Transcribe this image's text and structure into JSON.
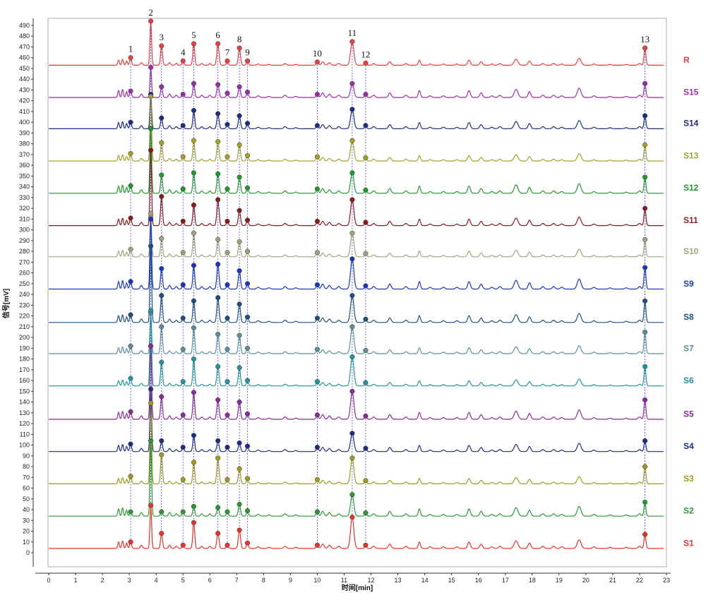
{
  "chart_data": {
    "type": "line",
    "xlabel": "时间[min]",
    "ylabel": "信号[mV]",
    "xlim": [
      0,
      23
    ],
    "ylim": [
      -5,
      495
    ],
    "x_ticks": [
      0,
      1,
      2,
      3,
      4,
      5,
      6,
      7,
      8,
      9,
      10,
      11,
      12,
      13,
      14,
      15,
      16,
      17,
      18,
      19,
      20,
      21,
      22,
      23
    ],
    "y_ticks": [
      0,
      10,
      20,
      30,
      40,
      50,
      60,
      70,
      80,
      90,
      100,
      110,
      120,
      130,
      140,
      150,
      160,
      170,
      180,
      190,
      200,
      210,
      220,
      230,
      240,
      250,
      260,
      270,
      280,
      290,
      300,
      310,
      320,
      330,
      340,
      350,
      360,
      370,
      380,
      390,
      400,
      410,
      420,
      430,
      440,
      450,
      460,
      470,
      480,
      490
    ],
    "peak_labels": [
      "1",
      "2",
      "3",
      "4",
      "5",
      "6",
      "7",
      "8",
      "9",
      "10",
      "11",
      "12",
      "13"
    ],
    "peak_times": [
      3.05,
      3.8,
      4.2,
      5.0,
      5.4,
      6.3,
      6.65,
      7.1,
      7.4,
      10.0,
      11.3,
      11.8,
      22.2
    ],
    "series": [
      {
        "name": "R",
        "color": "#e8413c",
        "baseline": 453,
        "peak_heights": [
          7,
          41,
          18,
          4,
          20,
          20,
          4,
          16,
          4,
          3,
          22,
          2,
          16
        ]
      },
      {
        "name": "S15",
        "color": "#9b2fa8",
        "baseline": 423,
        "peak_heights": [
          6,
          28,
          10,
          3,
          13,
          12,
          4,
          10,
          5,
          3,
          13,
          3,
          13
        ]
      },
      {
        "name": "S14",
        "color": "#1c2d86",
        "baseline": 394,
        "peak_heights": [
          6,
          32,
          10,
          3,
          17,
          14,
          4,
          12,
          5,
          3,
          18,
          3,
          12
        ]
      },
      {
        "name": "S13",
        "color": "#a5a126",
        "baseline": 364,
        "peak_heights": [
          7,
          60,
          17,
          4,
          19,
          18,
          4,
          15,
          5,
          4,
          19,
          3,
          15
        ]
      },
      {
        "name": "S12",
        "color": "#1f9a2c",
        "baseline": 334,
        "peak_heights": [
          7,
          60,
          17,
          4,
          19,
          18,
          4,
          15,
          5,
          4,
          19,
          3,
          15
        ]
      },
      {
        "name": "S11",
        "color": "#8c1a1a",
        "baseline": 304,
        "peak_heights": [
          7,
          70,
          27,
          4,
          19,
          24,
          4,
          14,
          5,
          4,
          24,
          3,
          16
        ]
      },
      {
        "name": "S10",
        "color": "#a2a27a",
        "baseline": 275,
        "peak_heights": [
          7,
          40,
          17,
          4,
          22,
          16,
          4,
          14,
          5,
          4,
          22,
          3,
          16
        ]
      },
      {
        "name": "S9",
        "color": "#1a34c8",
        "baseline": 245,
        "peak_heights": [
          7,
          65,
          19,
          4,
          22,
          23,
          4,
          17,
          5,
          4,
          28,
          3,
          20
        ]
      },
      {
        "name": "S8",
        "color": "#1d4f80",
        "baseline": 214,
        "peak_heights": [
          7,
          71,
          25,
          4,
          20,
          23,
          4,
          17,
          5,
          4,
          25,
          3,
          20
        ]
      },
      {
        "name": "S7",
        "color": "#5b9099",
        "baseline": 185,
        "peak_heights": [
          7,
          38,
          25,
          4,
          24,
          18,
          4,
          17,
          5,
          4,
          25,
          3,
          20
        ]
      },
      {
        "name": "S6",
        "color": "#1f979c",
        "baseline": 155,
        "peak_heights": [
          7,
          70,
          22,
          4,
          25,
          18,
          4,
          17,
          5,
          4,
          27,
          3,
          18
        ]
      },
      {
        "name": "S5",
        "color": "#8c2a9b",
        "baseline": 124,
        "peak_heights": [
          7,
          68,
          21,
          4,
          25,
          18,
          4,
          16,
          5,
          4,
          26,
          3,
          18
        ]
      },
      {
        "name": "S4",
        "color": "#1c2d86",
        "baseline": 94,
        "peak_heights": [
          7,
          58,
          10,
          4,
          15,
          10,
          4,
          8,
          5,
          4,
          17,
          3,
          10
        ]
      },
      {
        "name": "S3",
        "color": "#a19a1c",
        "baseline": 64,
        "peak_heights": [
          7,
          75,
          27,
          4,
          20,
          24,
          4,
          14,
          5,
          4,
          24,
          3,
          16
        ]
      },
      {
        "name": "S2",
        "color": "#2a9a2f",
        "baseline": 34,
        "peak_heights": [
          4,
          70,
          4,
          4,
          9,
          8,
          4,
          11,
          5,
          4,
          20,
          3,
          13
        ]
      },
      {
        "name": "S1",
        "color": "#e8322a",
        "baseline": 4,
        "peak_heights": [
          6,
          40,
          14,
          3,
          24,
          14,
          3,
          17,
          5,
          3,
          29,
          3,
          13
        ]
      }
    ]
  }
}
